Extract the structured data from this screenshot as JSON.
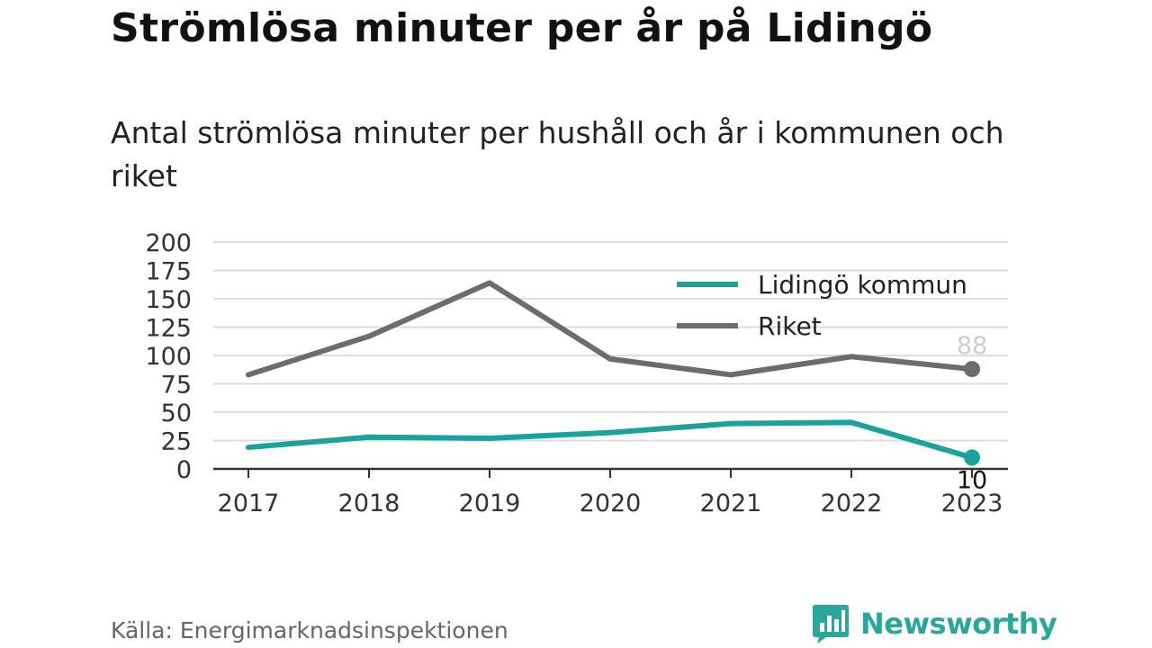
{
  "header": {
    "title": "Strömlösa minuter per år på Lidingö",
    "subtitle": "Antal strömlösa minuter per hushåll och år i kommunen och riket"
  },
  "chart_data": {
    "type": "line",
    "x": [
      "2017",
      "2018",
      "2019",
      "2020",
      "2021",
      "2022",
      "2023"
    ],
    "series": [
      {
        "name": "Lidingö kommun",
        "color": "#19a39a",
        "values": [
          19,
          28,
          27,
          32,
          40,
          41,
          10
        ]
      },
      {
        "name": "Riket",
        "color": "#6b6b70",
        "values": [
          83,
          117,
          164,
          97,
          83,
          99,
          88
        ]
      }
    ],
    "yticks": [
      "0",
      "25",
      "50",
      "75",
      "100",
      "125",
      "150",
      "175",
      "200"
    ],
    "ylim": [
      0,
      200
    ],
    "grid": true,
    "legend_position": "top-right",
    "end_labels": {
      "Lidingö kommun": "10",
      "Riket": "88"
    }
  },
  "footer": {
    "source": "Källa: Energimarknadsinspektionen",
    "brand": "Newsworthy",
    "brand_color": "#2aa79b",
    "logo_icon": "bar-chart-speech-bubble-icon"
  }
}
